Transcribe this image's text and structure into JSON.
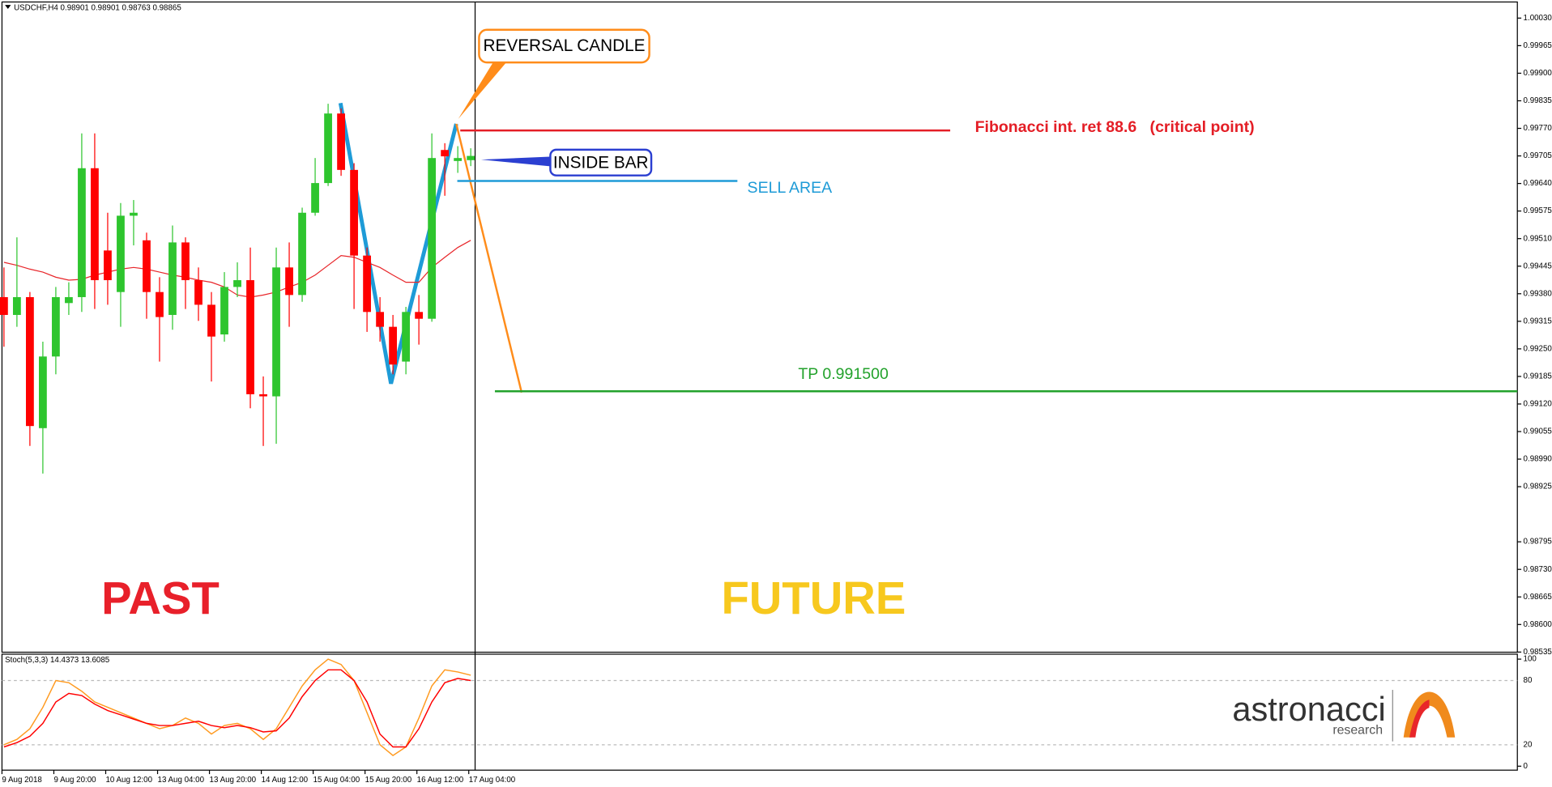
{
  "chart_data": [
    {
      "type": "candlestick",
      "title": "USDCHF,H4 0.98901 0.98901 0.98763 0.98865",
      "categories": [
        "9 Aug 2018",
        null,
        null,
        null,
        "9 Aug 20:00",
        null,
        null,
        null,
        "10 Aug 12:00",
        null,
        null,
        null,
        "13 Aug 04:00",
        null,
        null,
        null,
        "13 Aug 20:00",
        null,
        null,
        null,
        "14 Aug 12:00",
        null,
        null,
        null,
        "15 Aug 04:00",
        null,
        null,
        null,
        "15 Aug 20:00",
        null,
        null,
        null,
        "16 Aug 12:00",
        null,
        null,
        null,
        "17 Aug 04:00"
      ],
      "open": [
        0.99372,
        0.9933,
        0.99372,
        0.99063,
        0.99232,
        0.99358,
        0.99372,
        0.99676,
        0.99482,
        0.99384,
        0.99564,
        0.99506,
        0.99384,
        0.9933,
        0.99501,
        0.99412,
        0.99354,
        0.99284,
        0.99396,
        0.99412,
        0.99143,
        0.99138,
        0.99442,
        0.99377,
        0.99571,
        0.99641,
        0.99805,
        0.99672,
        0.9947,
        0.99337,
        0.99302,
        0.9922,
        0.99337,
        0.99321,
        0.99719,
        0.99693,
        0.99695
      ],
      "high": [
        0.99442,
        0.99513,
        0.99384,
        0.99267,
        0.99396,
        0.99407,
        0.99758,
        0.99758,
        0.99571,
        0.99594,
        0.99601,
        0.99524,
        0.99419,
        0.99541,
        0.99513,
        0.99442,
        0.99384,
        0.99431,
        0.99454,
        0.99489,
        0.99185,
        0.99489,
        0.99501,
        0.99583,
        0.997,
        0.99828,
        0.99817,
        0.99688,
        0.99489,
        0.99372,
        0.9933,
        0.99349,
        0.99377,
        0.99758,
        0.99735,
        0.99728,
        0.99723
      ],
      "low": [
        0.99255,
        0.99302,
        0.99021,
        0.98956,
        0.9919,
        0.9933,
        0.99337,
        0.99344,
        0.99354,
        0.99302,
        0.99494,
        0.99321,
        0.9922,
        0.99295,
        0.99344,
        0.99316,
        0.99173,
        0.99267,
        0.99372,
        0.9911,
        0.99021,
        0.99026,
        0.99302,
        0.99361,
        0.99564,
        0.99634,
        0.99658,
        0.99344,
        0.9929,
        0.99267,
        0.9919,
        0.9919,
        0.9926,
        0.99314,
        0.99611,
        0.99665,
        0.99681
      ],
      "close": [
        0.9933,
        0.99372,
        0.99068,
        0.99232,
        0.99372,
        0.99372,
        0.99676,
        0.99412,
        0.99412,
        0.99564,
        0.99571,
        0.99384,
        0.99325,
        0.99501,
        0.99412,
        0.99354,
        0.99279,
        0.99396,
        0.99412,
        0.99143,
        0.99138,
        0.99442,
        0.99377,
        0.99571,
        0.99641,
        0.99805,
        0.99672,
        0.9947,
        0.99337,
        0.99302,
        0.99213,
        0.99337,
        0.99321,
        0.997,
        0.99704,
        0.997,
        0.99705
      ],
      "up_color": "#2ec52e",
      "down_color": "#ff0000",
      "overlay": {
        "color": "#e8262a",
        "values": [
          0.99454,
          0.99447,
          0.99438,
          0.99431,
          0.99419,
          0.99412,
          0.99414,
          0.99424,
          0.99431,
          0.99438,
          0.99442,
          0.99438,
          0.99431,
          0.99424,
          0.99419,
          0.99412,
          0.99407,
          0.99396,
          0.99377,
          0.99372,
          0.99377,
          0.99384,
          0.99396,
          0.99407,
          0.99424,
          0.99447,
          0.9947,
          0.99466,
          0.99454,
          0.99442,
          0.99424,
          0.99407,
          0.99407,
          0.99442,
          0.99466,
          0.99489,
          0.99506
        ]
      },
      "levels": [
        {
          "label": "Fibonacci int. ret 88.6   (critical point)",
          "value": 0.99765,
          "color": "#e41e26"
        },
        {
          "label": "SELL AREA",
          "value": 0.99646,
          "color": "#1e9bd7"
        },
        {
          "label": "TP 0.991500",
          "value": 0.9915,
          "color": "#23a22c"
        }
      ],
      "ylim": [
        0.9853,
        1.00068
      ],
      "yticks": [
        {
          "value": 1.0003,
          "label": "1.00030"
        },
        0.99965,
        {
          "value": 0.999,
          "label": "0.99900"
        },
        0.99835,
        {
          "value": 0.9977,
          "label": "0.99770"
        },
        0.99705,
        {
          "value": 0.9964,
          "label": "0.99640"
        },
        0.99575,
        {
          "value": 0.9951,
          "label": "0.99510"
        },
        0.99445,
        {
          "value": 0.9938,
          "label": "0.99380"
        },
        0.99315,
        {
          "value": 0.9925,
          "label": "0.99250"
        },
        0.99185,
        {
          "value": 0.9912,
          "label": "0.99120"
        },
        0.99055,
        {
          "value": 0.9899,
          "label": "0.98990"
        },
        0.98925,
        0.98795,
        {
          "value": 0.9873,
          "label": "0.98730"
        },
        0.98665,
        {
          "value": 0.986,
          "label": "0.98600"
        },
        0.98535
      ],
      "annotations": {
        "reversal": "REVERSAL CANDLE",
        "inside": "INSIDE BAR",
        "past": "PAST",
        "future": "FUTURE"
      }
    },
    {
      "type": "line",
      "title": "Stoch(5,3,3) 14.4373 13.6085",
      "series": [
        {
          "color": "#ff9a1f",
          "values": [
            20,
            25,
            35,
            55,
            80,
            78,
            70,
            60,
            55,
            50,
            45,
            40,
            35,
            38,
            45,
            40,
            30,
            38,
            40,
            35,
            25,
            35,
            55,
            75,
            90,
            100,
            95,
            80,
            50,
            20,
            10,
            18,
            45,
            75,
            90,
            88,
            85
          ]
        },
        {
          "color": "#ff0000",
          "values": [
            18,
            22,
            28,
            40,
            60,
            68,
            66,
            58,
            52,
            48,
            44,
            40,
            38,
            38,
            40,
            42,
            38,
            36,
            38,
            36,
            32,
            33,
            45,
            65,
            80,
            90,
            90,
            80,
            60,
            30,
            18,
            18,
            35,
            60,
            78,
            82,
            80
          ]
        }
      ],
      "ylim": [
        0,
        100
      ],
      "yticks": [
        100,
        80,
        20,
        0
      ]
    }
  ],
  "logo": {
    "name": "astronacci",
    "tagline": "research"
  }
}
